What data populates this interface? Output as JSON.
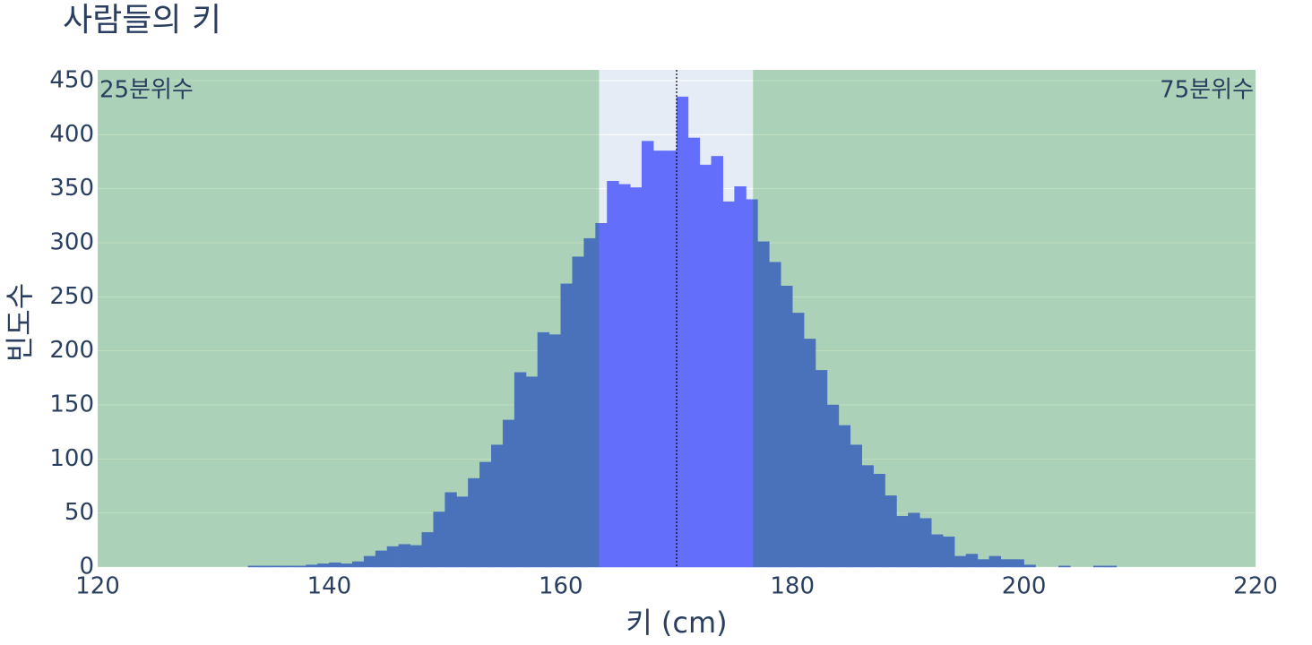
{
  "chart_data": {
    "type": "histogram",
    "title": "사람들의 키",
    "xlabel": "키 (cm)",
    "ylabel": "빈도수",
    "bins": [
      133,
      134,
      135,
      136,
      137,
      138,
      139,
      140,
      141,
      142,
      143,
      144,
      145,
      146,
      147,
      148,
      149,
      150,
      151,
      152,
      153,
      154,
      155,
      156,
      157,
      158,
      159,
      160,
      161,
      162,
      163,
      164,
      165,
      166,
      167,
      168,
      169,
      170,
      171,
      172,
      173,
      174,
      175,
      176,
      177,
      178,
      179,
      180,
      181,
      182,
      183,
      184,
      185,
      186,
      187,
      188,
      189,
      190,
      191,
      192,
      193,
      194,
      195,
      196,
      197,
      198,
      199,
      200,
      201,
      202,
      203,
      204,
      205,
      206,
      207,
      208
    ],
    "values": [
      1,
      1,
      1,
      1,
      1,
      2,
      3,
      4,
      3,
      5,
      10,
      15,
      19,
      21,
      20,
      32,
      51,
      69,
      65,
      82,
      97,
      113,
      136,
      180,
      176,
      217,
      215,
      262,
      287,
      304,
      318,
      357,
      354,
      351,
      394,
      385,
      385,
      435,
      397,
      372,
      380,
      338,
      352,
      340,
      301,
      282,
      260,
      235,
      211,
      182,
      150,
      131,
      113,
      94,
      86,
      66,
      47,
      50,
      45,
      30,
      28,
      10,
      12,
      7,
      10,
      7,
      7,
      2,
      0,
      0,
      1,
      0,
      0,
      1,
      1
    ],
    "color": "#636efa",
    "quartiles": {
      "q1": 163.3,
      "median": 170,
      "q3": 176.6
    },
    "outer_color": "green",
    "annotations": [
      "25분위수",
      "75분위수"
    ],
    "xlim": [
      120,
      220
    ],
    "xticks": [
      120,
      140,
      160,
      180,
      200,
      220
    ],
    "ylim": [
      0,
      450
    ],
    "yticks": [
      0,
      50,
      100,
      150,
      200,
      250,
      300,
      350,
      400,
      450
    ],
    "grid": true
  }
}
